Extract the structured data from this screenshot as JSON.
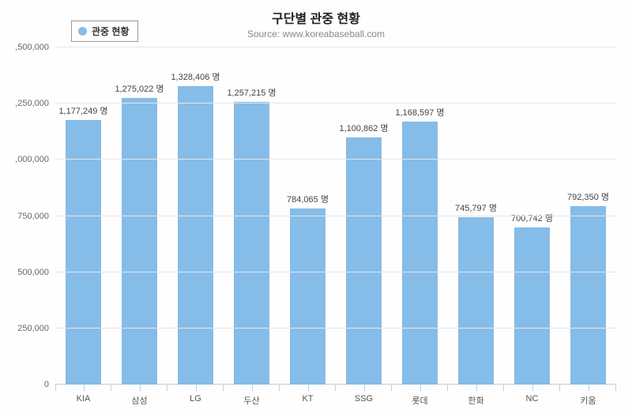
{
  "chart": {
    "type": "bar",
    "title": "구단별 관중 현황",
    "subtitle": "Source: www.koreabaseball.com",
    "legend_label": "관중 현황",
    "bar_color": "#86bce8",
    "legend_marker_color": "#86bce8",
    "background_color": "#fefefe",
    "grid_color": "#e6e6e6",
    "axis_color": "#cccccc",
    "title_fontsize": 16,
    "subtitle_fontsize": 12,
    "label_fontsize": 11,
    "bar_width_ratio": 0.62,
    "value_suffix": " 명",
    "ylim": [
      0,
      1500000
    ],
    "yticks": [
      {
        "value": 0,
        "label": "0"
      },
      {
        "value": 250000,
        "label": "250,000"
      },
      {
        "value": 500000,
        "label": "500,000"
      },
      {
        "value": 750000,
        "label": "750,000"
      },
      {
        "value": 1000000,
        "label": ",000,000"
      },
      {
        "value": 1250000,
        "label": ",250,000"
      },
      {
        "value": 1500000,
        "label": ",500,000"
      }
    ],
    "categories": [
      "KIA",
      "삼성",
      "LG",
      "두산",
      "KT",
      "SSG",
      "롯데",
      "한화",
      "NC",
      "키움"
    ],
    "values": [
      1177249,
      1275022,
      1328406,
      1257215,
      784065,
      1100862,
      1168597,
      745797,
      700742,
      792350
    ],
    "value_labels": [
      "1,177,249 명",
      "1,275,022 명",
      "1,328,406 명",
      "1,257,215 명",
      "784,065 명",
      "1,100,862 명",
      "1,168,597 명",
      "745,797 명",
      "700,742 명",
      "792,350 명"
    ]
  }
}
